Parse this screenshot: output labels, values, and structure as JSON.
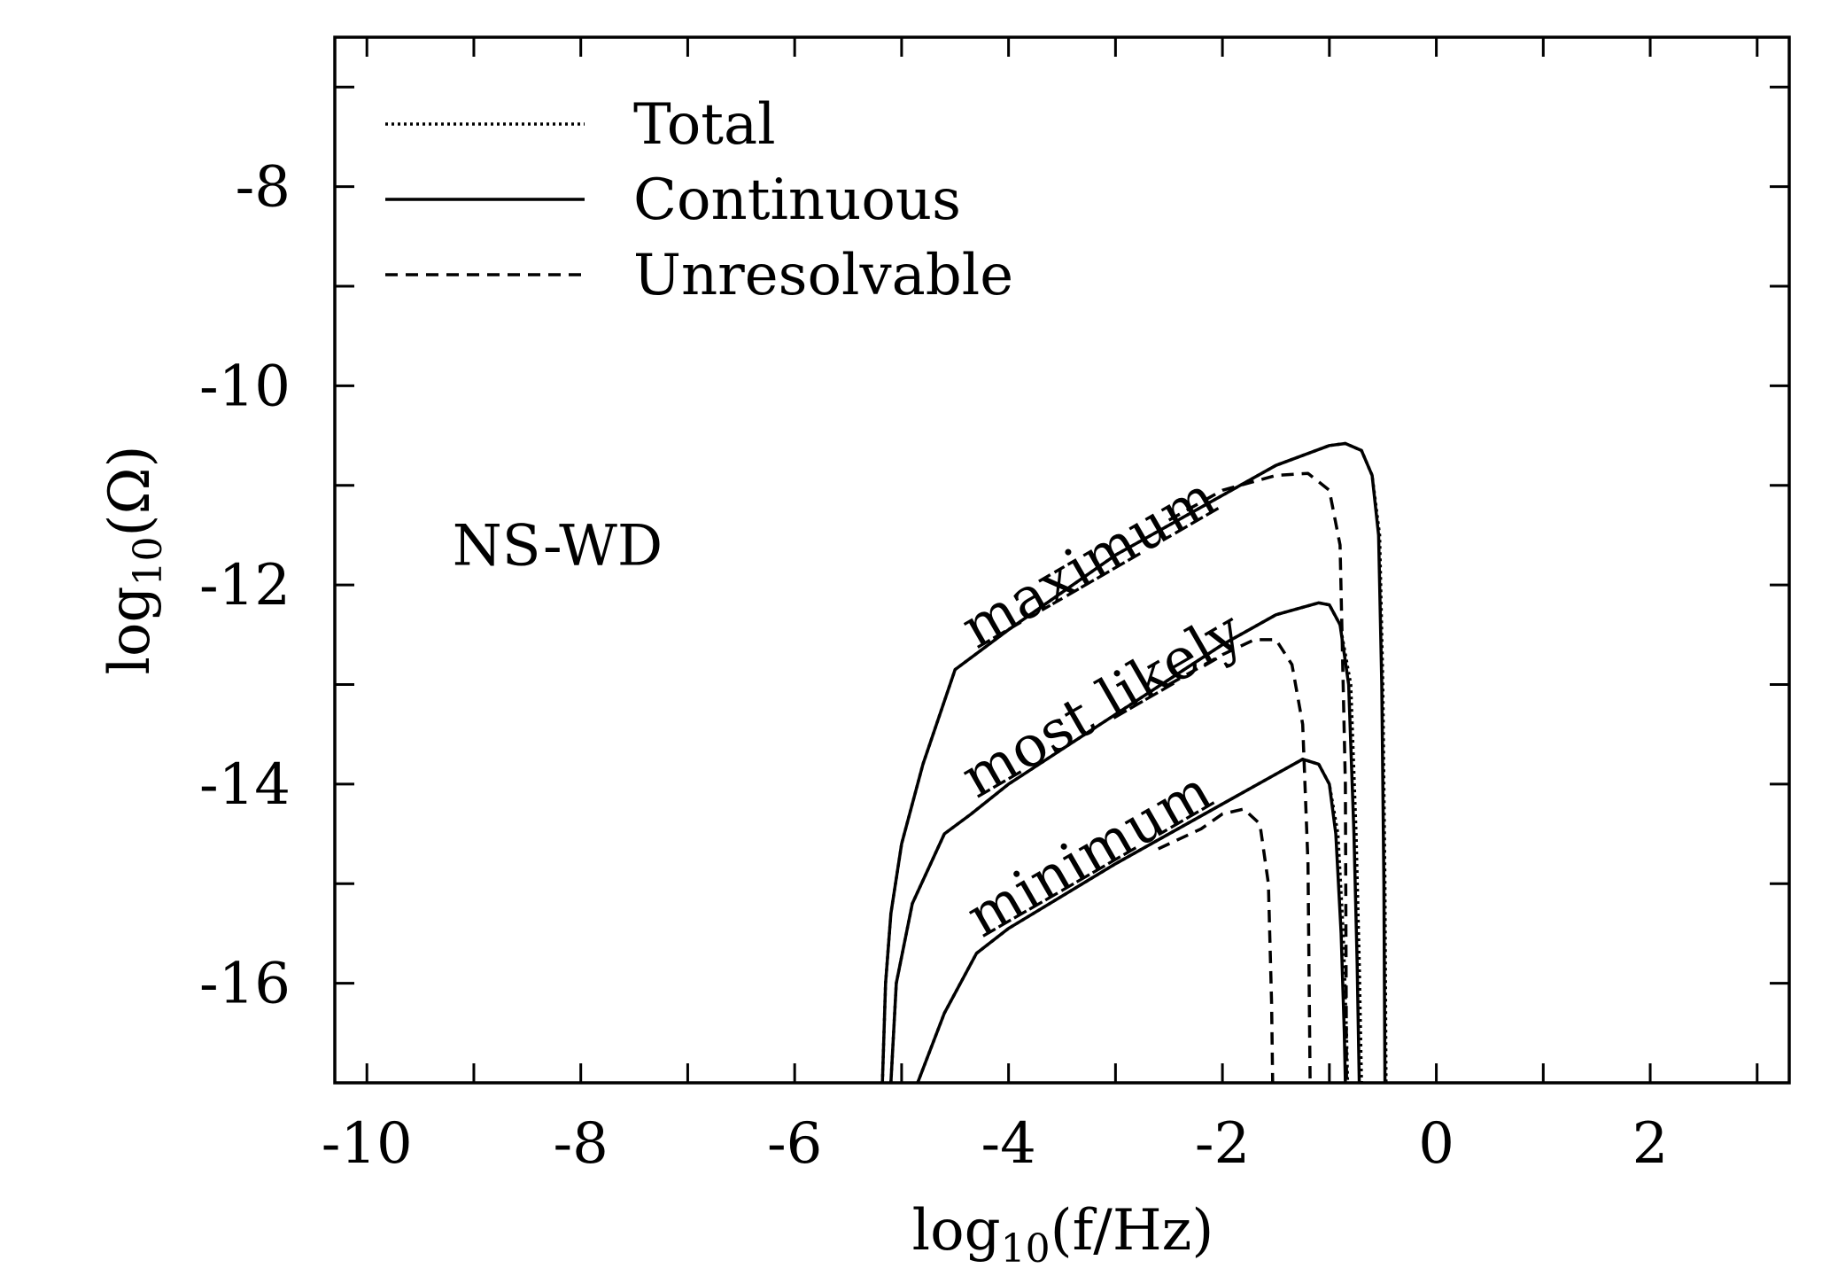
{
  "chart_data": {
    "type": "line",
    "title": "",
    "xlabel": {
      "prefix": "log",
      "sub": "10",
      "body": "(f/Hz)"
    },
    "ylabel": {
      "prefix": "log",
      "sub": "10",
      "body": "(Ω)"
    },
    "xlim": [
      -10.3,
      3.3
    ],
    "ylim": [
      -17,
      -6.5
    ],
    "xticks": [
      -10,
      -8,
      -6,
      -4,
      -2,
      0,
      2
    ],
    "xtick_labels": [
      "-10",
      "-8",
      "-6",
      "-4",
      "-2",
      "0",
      "2"
    ],
    "yticks": [
      -8,
      -10,
      -12,
      -14,
      -16
    ],
    "ytick_labels": [
      "-8",
      "-10",
      "-12",
      "-14",
      "-16"
    ],
    "grid": false,
    "legend_position": "top-left",
    "legend": [
      {
        "label": "Total",
        "style": "dotted"
      },
      {
        "label": "Continuous",
        "style": "solid"
      },
      {
        "label": "Unresolvable",
        "style": "dashed"
      }
    ],
    "annotations": [
      {
        "text": "NS-WD",
        "x": -9.2,
        "y": -11.8,
        "rotate": 0
      },
      {
        "text": "maximum",
        "x": -4.3,
        "y": -12.65,
        "rotate": -30
      },
      {
        "text": "most likely",
        "x": -4.3,
        "y": -14.15,
        "rotate": -30
      },
      {
        "text": "minimum",
        "x": -4.25,
        "y": -15.55,
        "rotate": -30
      }
    ],
    "series": [
      {
        "group": "maximum",
        "style": "dotted",
        "x": [
          -5.18,
          -5.15,
          -5.1,
          -5.0,
          -4.8,
          -4.5,
          -4.0,
          -3.0,
          -2.0,
          -1.5,
          -1.0,
          -0.85,
          -0.7,
          -0.6,
          -0.53,
          -0.5,
          -0.48,
          -0.47
        ],
        "y": [
          -17,
          -16.0,
          -15.3,
          -14.6,
          -13.8,
          -12.85,
          -12.45,
          -11.7,
          -11.1,
          -10.8,
          -10.6,
          -10.58,
          -10.65,
          -10.9,
          -11.5,
          -13.0,
          -15.0,
          -17
        ]
      },
      {
        "group": "maximum",
        "style": "solid",
        "x": [
          -5.18,
          -5.15,
          -5.1,
          -5.0,
          -4.8,
          -4.5,
          -4.0,
          -3.0,
          -2.0,
          -1.5,
          -1.0,
          -0.85,
          -0.7,
          -0.6,
          -0.54,
          -0.51,
          -0.49,
          -0.48
        ],
        "y": [
          -17,
          -16.0,
          -15.3,
          -14.6,
          -13.8,
          -12.85,
          -12.45,
          -11.7,
          -11.1,
          -10.8,
          -10.6,
          -10.58,
          -10.65,
          -10.9,
          -11.5,
          -13.0,
          -15.0,
          -17
        ]
      },
      {
        "group": "maximum",
        "style": "dashed",
        "x": [
          -2.5,
          -2.0,
          -1.5,
          -1.2,
          -1.0,
          -0.9,
          -0.85,
          -0.84
        ],
        "y": [
          -11.35,
          -11.05,
          -10.9,
          -10.88,
          -11.05,
          -11.6,
          -14.0,
          -17
        ]
      },
      {
        "group": "most likely",
        "style": "dotted",
        "x": [
          -5.1,
          -5.05,
          -4.9,
          -4.6,
          -4.35,
          -4.0,
          -3.0,
          -2.0,
          -1.5,
          -1.1,
          -1.0,
          -0.9,
          -0.8,
          -0.75,
          -0.72,
          -0.7
        ],
        "y": [
          -17,
          -16.0,
          -15.2,
          -14.5,
          -14.3,
          -14.0,
          -13.3,
          -12.6,
          -12.3,
          -12.18,
          -12.2,
          -12.4,
          -13.0,
          -14.5,
          -15.8,
          -17
        ]
      },
      {
        "group": "most likely",
        "style": "solid",
        "x": [
          -5.1,
          -5.05,
          -4.9,
          -4.6,
          -4.35,
          -4.0,
          -3.0,
          -2.0,
          -1.5,
          -1.1,
          -1.0,
          -0.9,
          -0.82,
          -0.77,
          -0.74,
          -0.72
        ],
        "y": [
          -17,
          -16.0,
          -15.2,
          -14.5,
          -14.3,
          -14.0,
          -13.3,
          -12.6,
          -12.3,
          -12.18,
          -12.2,
          -12.4,
          -13.0,
          -14.5,
          -15.8,
          -17
        ]
      },
      {
        "group": "most likely",
        "style": "dashed",
        "x": [
          -2.5,
          -2.0,
          -1.7,
          -1.5,
          -1.35,
          -1.25,
          -1.2,
          -1.18
        ],
        "y": [
          -13.0,
          -12.7,
          -12.55,
          -12.55,
          -12.8,
          -13.4,
          -14.8,
          -17
        ]
      },
      {
        "group": "minimum",
        "style": "dotted",
        "x": [
          -4.85,
          -4.6,
          -4.3,
          -4.0,
          -3.0,
          -2.0,
          -1.5,
          -1.25,
          -1.1,
          -1.0,
          -0.92,
          -0.87,
          -0.84,
          -0.83
        ],
        "y": [
          -17,
          -16.3,
          -15.7,
          -15.45,
          -14.8,
          -14.2,
          -13.9,
          -13.75,
          -13.8,
          -14.0,
          -14.5,
          -15.5,
          -16.5,
          -17
        ]
      },
      {
        "group": "minimum",
        "style": "solid",
        "x": [
          -4.85,
          -4.6,
          -4.3,
          -4.0,
          -3.0,
          -2.0,
          -1.5,
          -1.25,
          -1.1,
          -1.0,
          -0.94,
          -0.89,
          -0.86,
          -0.85
        ],
        "y": [
          -17,
          -16.3,
          -15.7,
          -15.45,
          -14.8,
          -14.2,
          -13.9,
          -13.75,
          -13.8,
          -14.0,
          -14.5,
          -15.5,
          -16.5,
          -17
        ]
      },
      {
        "group": "minimum",
        "style": "dashed",
        "x": [
          -2.6,
          -2.2,
          -2.0,
          -1.8,
          -1.65,
          -1.57,
          -1.54,
          -1.53
        ],
        "y": [
          -14.65,
          -14.45,
          -14.3,
          -14.25,
          -14.4,
          -15.0,
          -16.2,
          -17
        ]
      }
    ]
  }
}
